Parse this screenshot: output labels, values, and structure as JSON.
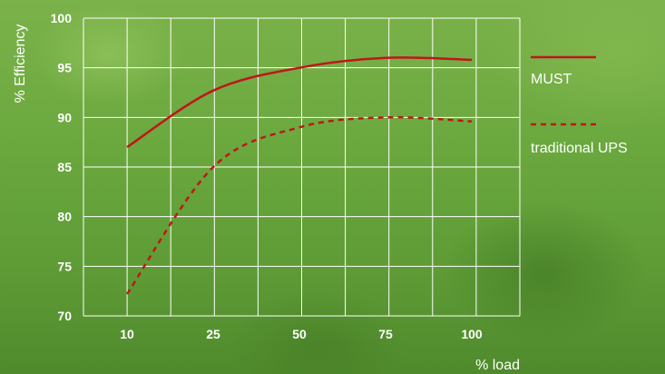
{
  "chart_data": {
    "type": "line",
    "categories": [
      "10",
      "25",
      "50",
      "75",
      "100"
    ],
    "series": [
      {
        "name": "MUST",
        "values": [
          87,
          92.7,
          95,
          96,
          95.8
        ],
        "color": "#c0161a",
        "style": "solid"
      },
      {
        "name": "traditional UPS",
        "values": [
          72.2,
          85,
          89,
          90,
          89.6
        ],
        "color": "#c0161a",
        "style": "dashed"
      }
    ],
    "xlabel": "% load",
    "ylabel": "% Efficiency",
    "ylim": [
      70,
      100
    ],
    "yticks": [
      "70",
      "75",
      "80",
      "85",
      "90",
      "95",
      "100"
    ],
    "grid": true,
    "legend_position": "right",
    "colors": {
      "grid": "#ffffff",
      "text": "#ffffff",
      "line": "#c0161a"
    }
  }
}
